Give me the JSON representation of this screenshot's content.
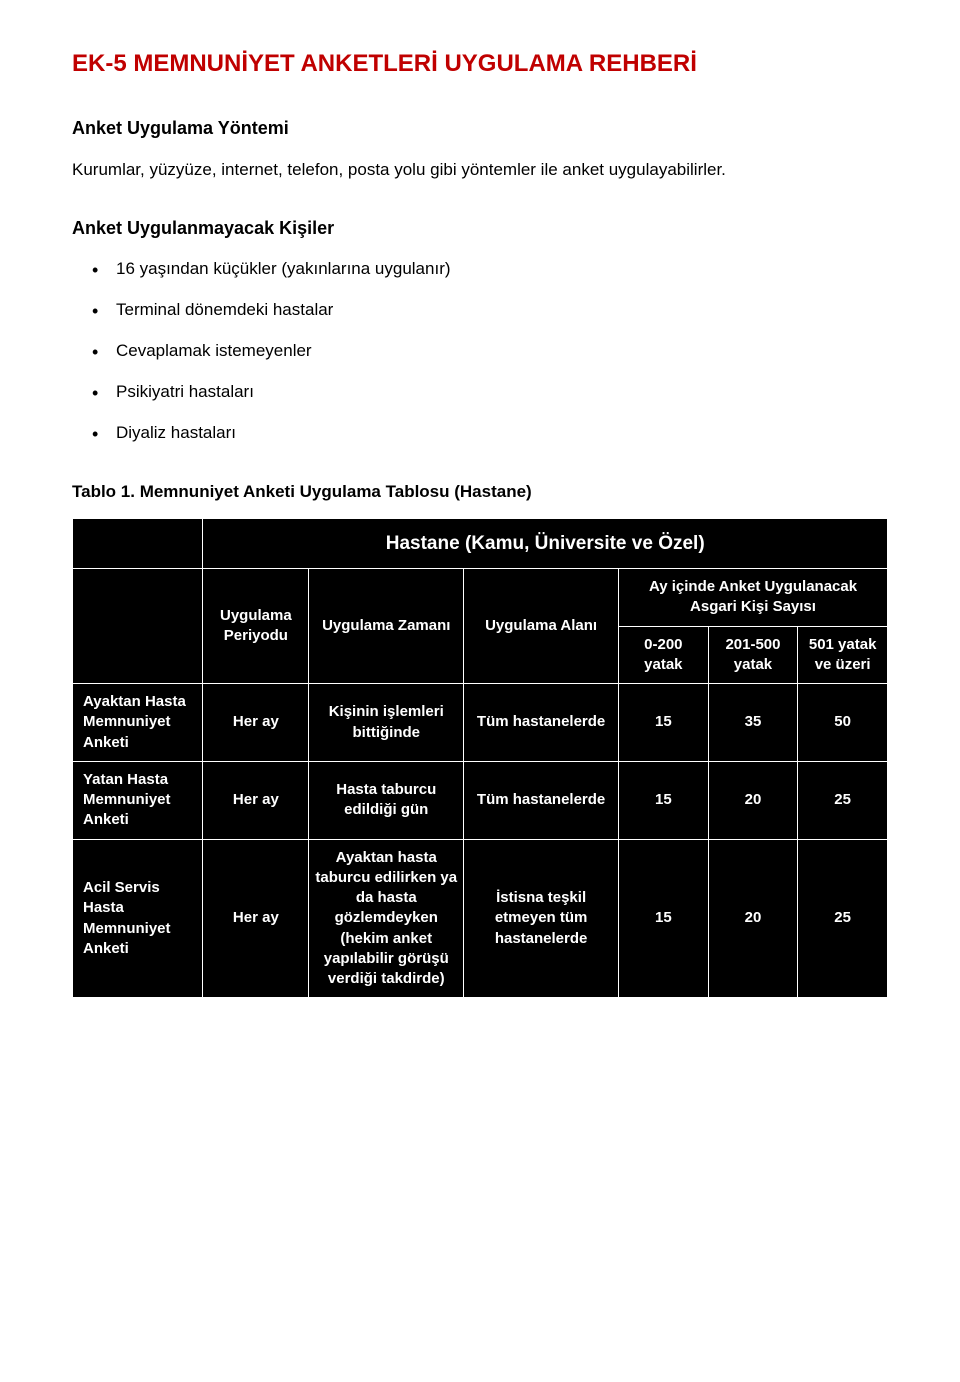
{
  "title": "EK-5 MEMNUNİYET ANKETLERİ UYGULAMA REHBERİ",
  "section1": {
    "heading": "Anket Uygulama Yöntemi",
    "body": "Kurumlar, yüzyüze, internet, telefon, posta yolu gibi yöntemler ile anket uygulayabilirler."
  },
  "section2": {
    "heading": "Anket Uygulanmayacak Kişiler",
    "items": [
      "16 yaşından küçükler (yakınlarına uygulanır)",
      "Terminal dönemdeki hastalar",
      "Cevaplamak istemeyenler",
      "Psikiyatri hastaları",
      "Diyaliz hastaları"
    ]
  },
  "table": {
    "caption": "Tablo 1. Memnuniyet Anketi Uygulama Tablosu (Hastane)",
    "title": "Hastane (Kamu, Üniversite ve Özel)",
    "headers": {
      "period": "Uygulama Periyodu",
      "time": "Uygulama Zamanı",
      "area": "Uygulama Alanı",
      "count_group": "Ay içinde Anket Uygulanacak Asgari Kişi Sayısı",
      "c1": "0-200 yatak",
      "c2": "201-500 yatak",
      "c3": "501 yatak ve üzeri"
    },
    "rows": [
      {
        "label": "Ayaktan Hasta Memnuniyet Anketi",
        "period": "Her ay",
        "time": "Kişinin işlemleri bittiğinde",
        "area": "Tüm hastanelerde",
        "v1": "15",
        "v2": "35",
        "v3": "50"
      },
      {
        "label": "Yatan Hasta Memnuniyet Anketi",
        "period": "Her ay",
        "time": "Hasta taburcu edildiği gün",
        "area": "Tüm hastanelerde",
        "v1": "15",
        "v2": "20",
        "v3": "25"
      },
      {
        "label": "Acil Servis Hasta Memnuniyet Anketi",
        "period": "Her ay",
        "time": "Ayaktan hasta taburcu edilirken ya da hasta gözlemdeyken (hekim anket yapılabilir görüşü verdiği takdirde)",
        "area": "İstisna teşkil etmeyen tüm hastanelerde",
        "v1": "15",
        "v2": "20",
        "v3": "25"
      }
    ]
  },
  "colors": {
    "title": "#c00000",
    "table_bg": "#000000",
    "table_fg": "#ffffff",
    "page_bg": "#ffffff",
    "text": "#000000"
  }
}
